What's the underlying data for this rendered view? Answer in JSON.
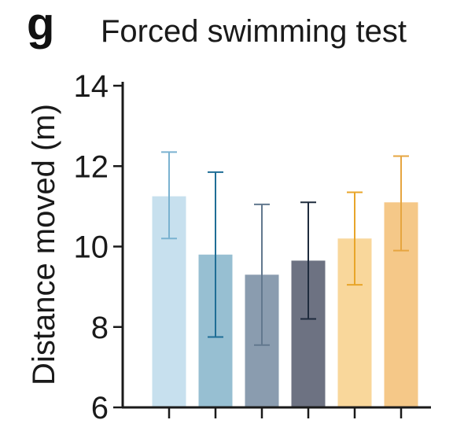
{
  "panel_letter": "g",
  "chart_data": {
    "type": "bar",
    "title": "Forced swimming test",
    "xlabel": "",
    "ylabel": "Distance moved (m)",
    "ylim": [
      6,
      14
    ],
    "yticks": [
      6,
      8,
      10,
      12,
      14
    ],
    "categories": [
      "",
      "",
      "",
      "",
      "",
      ""
    ],
    "values": [
      11.25,
      9.8,
      9.3,
      9.65,
      10.2,
      11.1
    ],
    "errors": [
      [
        10.2,
        12.35
      ],
      [
        7.75,
        11.85
      ],
      [
        7.55,
        11.05
      ],
      [
        8.2,
        11.1
      ],
      [
        9.05,
        11.35
      ],
      [
        9.9,
        12.25
      ]
    ],
    "bar_colors": [
      "#c7e0ee",
      "#97bfd2",
      "#8a9caf",
      "#6d7282",
      "#f9d79b",
      "#f5c888"
    ],
    "error_colors": [
      "#7ab2d0",
      "#1f6e96",
      "#62788e",
      "#1e2b3d",
      "#e8a52a",
      "#e6a540"
    ],
    "grid": false,
    "legend": "none"
  }
}
